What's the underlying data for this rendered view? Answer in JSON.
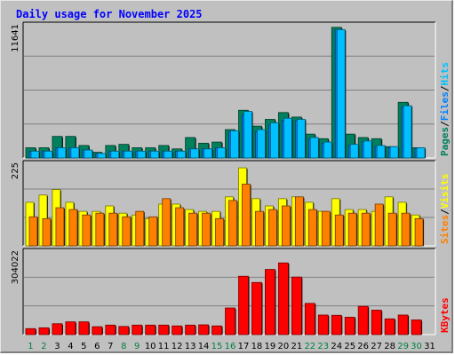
{
  "title": "Daily usage for November 2025",
  "colors": {
    "pages": "#00805c",
    "files": "#0080ff",
    "hits": "#00c0ff",
    "visits": "#ffff00",
    "sites": "#ff8000",
    "kbytes": "#ff0000",
    "title": "#0000ff",
    "weekend": "#008040",
    "plot_bg": "#c0c0c0"
  },
  "labels": {
    "pages": "Pages",
    "files": "Files",
    "hits": "Hits",
    "sep": "/",
    "visits": "Visits",
    "sites": "Sites",
    "kbytes": "KBytes"
  },
  "chart_data": [
    {
      "type": "bar",
      "name": "hits-files-pages",
      "ymax_label": "11641",
      "ymax": 11641,
      "days": [
        1,
        2,
        3,
        4,
        5,
        6,
        7,
        8,
        9,
        10,
        11,
        12,
        13,
        14,
        15,
        16,
        17,
        18,
        19,
        20,
        21,
        22,
        23,
        24,
        25,
        26,
        27,
        28,
        29,
        30,
        31
      ],
      "series": [
        {
          "name": "Pages",
          "values": [
            900,
            900,
            1900,
            1900,
            1100,
            500,
            1100,
            1200,
            900,
            900,
            1100,
            800,
            1800,
            1300,
            1400,
            2500,
            4200,
            2800,
            3400,
            4000,
            3600,
            2100,
            1700,
            11500,
            2100,
            1800,
            1700,
            1000,
            4900,
            900,
            0
          ]
        },
        {
          "name": "Files",
          "values": [
            600,
            600,
            900,
            900,
            700,
            400,
            600,
            600,
            600,
            600,
            600,
            600,
            800,
            800,
            900,
            2300,
            3800,
            2300,
            2900,
            3300,
            3300,
            1700,
            1300,
            11300,
            1100,
            1400,
            1000,
            900,
            4500,
            800,
            0
          ]
        },
        {
          "name": "Hits",
          "values": [
            600,
            600,
            900,
            900,
            700,
            400,
            600,
            600,
            600,
            600,
            600,
            600,
            800,
            800,
            900,
            2400,
            4100,
            2500,
            3100,
            3500,
            3400,
            1800,
            1400,
            11300,
            1200,
            1500,
            1100,
            1000,
            4600,
            900,
            0
          ]
        }
      ]
    },
    {
      "type": "bar",
      "name": "visits-sites",
      "ymax_label": "225",
      "ymax": 225,
      "days": [
        1,
        2,
        3,
        4,
        5,
        6,
        7,
        8,
        9,
        10,
        11,
        12,
        13,
        14,
        15,
        16,
        17,
        18,
        19,
        20,
        21,
        22,
        23,
        24,
        25,
        26,
        27,
        28,
        29,
        30,
        31
      ],
      "series": [
        {
          "name": "Visits",
          "values": [
            120,
            140,
            155,
            120,
            95,
            95,
            110,
            90,
            85,
            75,
            115,
            115,
            100,
            95,
            95,
            135,
            215,
            130,
            110,
            130,
            135,
            120,
            95,
            130,
            100,
            100,
            95,
            135,
            120,
            85,
            0
          ]
        },
        {
          "name": "Sites",
          "values": [
            80,
            75,
            105,
            100,
            85,
            90,
            90,
            80,
            95,
            80,
            130,
            105,
            90,
            90,
            75,
            125,
            170,
            95,
            100,
            110,
            135,
            100,
            95,
            85,
            90,
            90,
            115,
            90,
            90,
            75,
            0
          ]
        }
      ]
    },
    {
      "type": "bar",
      "name": "kbytes",
      "ymax_label": "304022",
      "ymax": 304022,
      "days": [
        1,
        2,
        3,
        4,
        5,
        6,
        7,
        8,
        9,
        10,
        11,
        12,
        13,
        14,
        15,
        16,
        17,
        18,
        19,
        20,
        21,
        22,
        23,
        24,
        25,
        26,
        27,
        28,
        29,
        30,
        31
      ],
      "series": [
        {
          "name": "KBytes",
          "values": [
            22000,
            25000,
            40000,
            47000,
            47000,
            29000,
            35000,
            30000,
            35000,
            35000,
            35000,
            32000,
            35000,
            36000,
            32000,
            98000,
            215000,
            192000,
            240000,
            264000,
            212000,
            115000,
            72000,
            71000,
            64000,
            104000,
            90000,
            58000,
            72000,
            54000,
            0
          ]
        }
      ]
    }
  ],
  "weekend_days": [
    1,
    2,
    8,
    9,
    15,
    16,
    22,
    23,
    29,
    30
  ]
}
